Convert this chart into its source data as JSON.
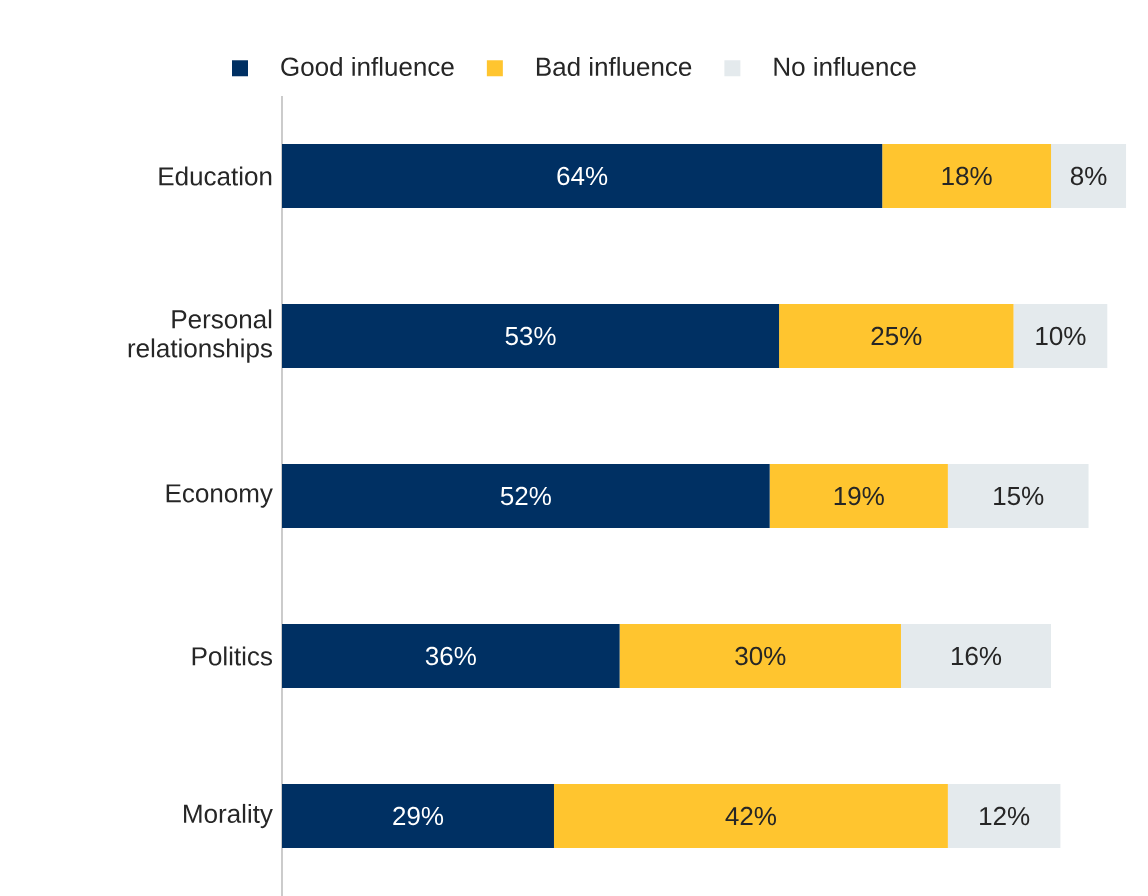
{
  "chart_data": {
    "type": "bar",
    "orientation": "horizontal",
    "stacked": true,
    "categories": [
      "Education",
      "Personal relationships",
      "Economy",
      "Politics",
      "Morality"
    ],
    "tick_labels": "y",
    "legend": "top",
    "series": [
      {
        "name": "Good influence",
        "color": "#003063",
        "values": [
          64,
          53,
          52,
          36,
          29
        ],
        "value_labels": [
          "64%",
          "53%",
          "52%",
          "36%",
          "29%"
        ]
      },
      {
        "name": "Bad influence",
        "color": "#ffc52f",
        "values": [
          18,
          25,
          19,
          30,
          42
        ],
        "value_labels": [
          "18%",
          "25%",
          "19%",
          "30%",
          "42%"
        ]
      },
      {
        "name": "No influence",
        "color": "#e4eaed",
        "values": [
          8,
          10,
          15,
          16,
          12
        ],
        "value_labels": [
          "8%",
          "10%",
          "15%",
          "16%",
          "12%"
        ]
      }
    ]
  }
}
